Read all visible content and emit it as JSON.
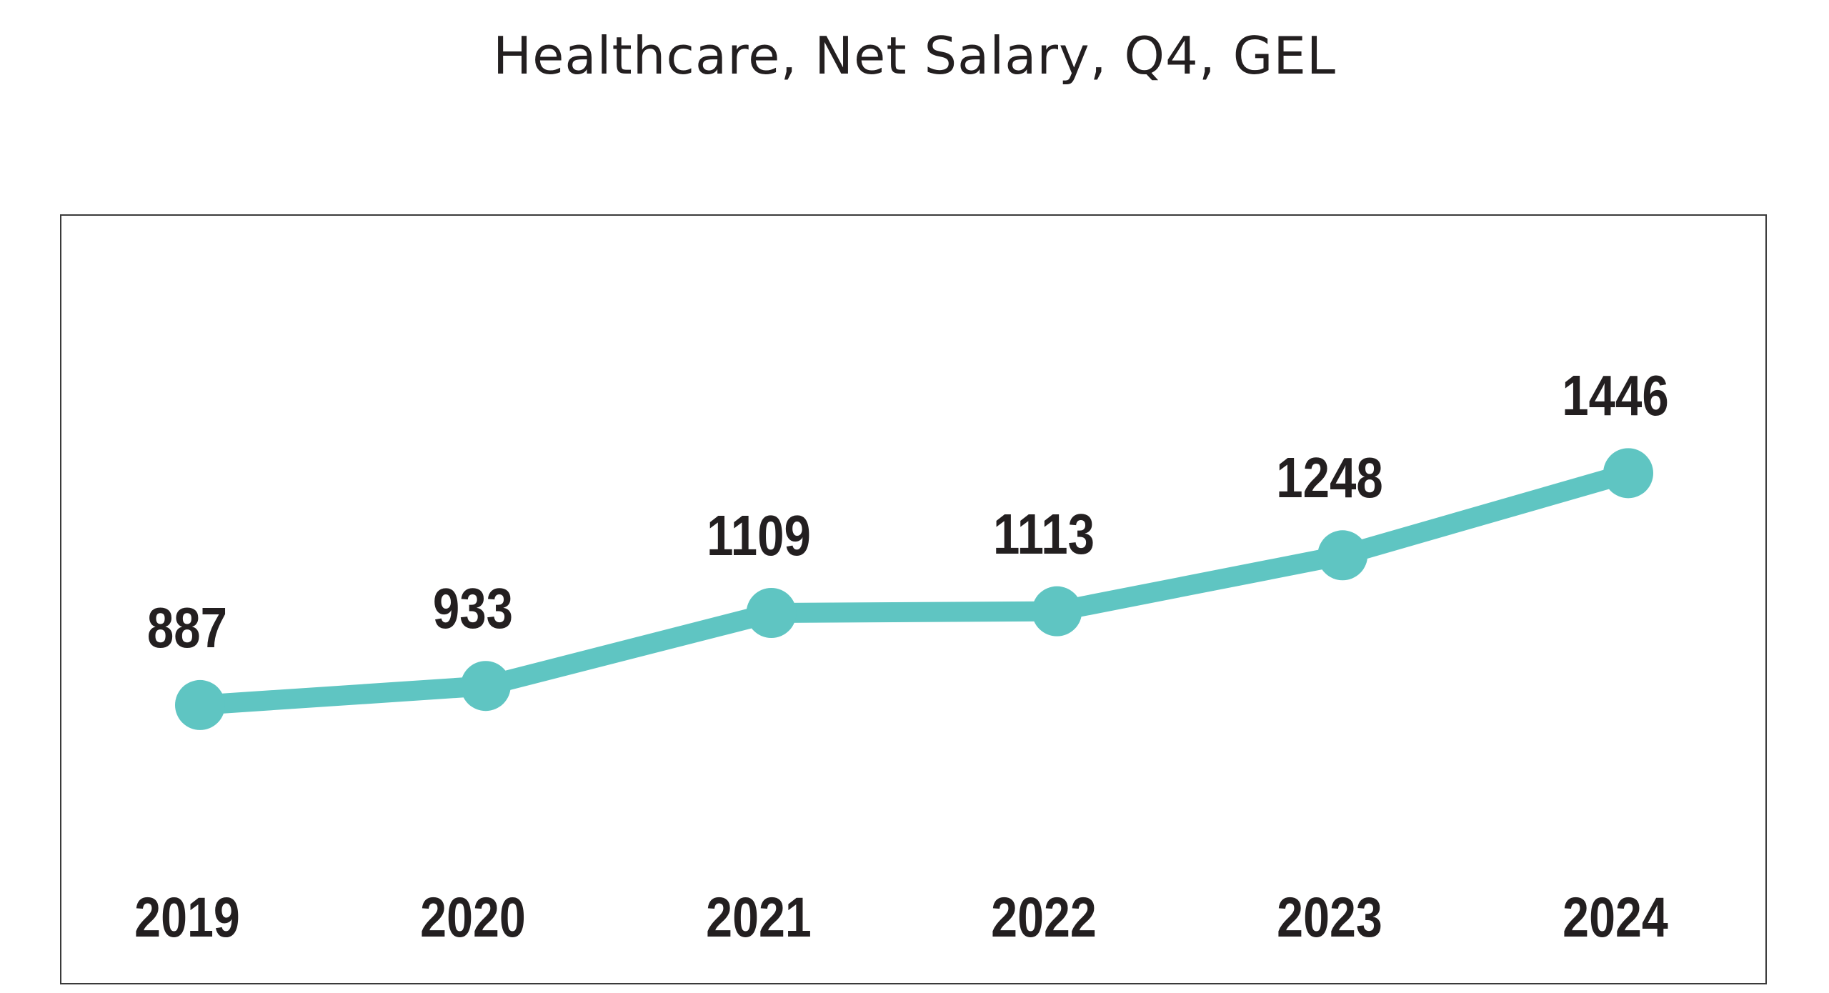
{
  "title": "Healthcare, Net Salary, Q4, GEL",
  "colors": {
    "accent": "#5FC5C2",
    "text": "#231F20",
    "plot_border": "#3A3A3A",
    "background": "#FFFFFF"
  },
  "chart_data": {
    "type": "line",
    "title": "Healthcare, Net Salary, Q4, GEL",
    "categories": [
      "2019",
      "2020",
      "2021",
      "2022",
      "2023",
      "2024"
    ],
    "values": [
      887,
      933,
      1109,
      1113,
      1248,
      1446
    ],
    "series": [
      {
        "name": "Healthcare net salary, Q4, GEL",
        "values": [
          887,
          933,
          1109,
          1113,
          1248,
          1446
        ]
      }
    ],
    "xlabel": "",
    "ylabel": "",
    "ylim": [
      210,
      2070
    ],
    "grid": false,
    "legend": false,
    "data_labels": true,
    "marker": "circle"
  }
}
